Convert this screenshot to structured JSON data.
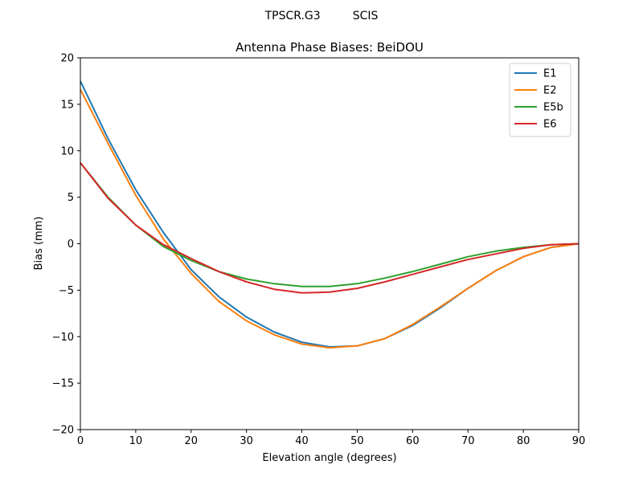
{
  "header": {
    "suptitle": "TPSCR.G3         SCIS"
  },
  "chart_data": {
    "type": "line",
    "title": "Antenna Phase Biases: BeiDOU",
    "xlabel": "Elevation angle (degrees)",
    "ylabel": "Bias (mm)",
    "xlim": [
      0,
      90
    ],
    "ylim": [
      -20,
      20
    ],
    "xticks": [
      0,
      10,
      20,
      30,
      40,
      50,
      60,
      70,
      80,
      90
    ],
    "yticks": [
      -20,
      -15,
      -10,
      -5,
      0,
      5,
      10,
      15,
      20
    ],
    "xtick_labels": [
      "0",
      "10",
      "20",
      "30",
      "40",
      "50",
      "60",
      "70",
      "80",
      "90"
    ],
    "ytick_labels": [
      "−20",
      "−15",
      "−10",
      "−5",
      "0",
      "5",
      "10",
      "15",
      "20"
    ],
    "grid": false,
    "legend_position": "top-right",
    "x": [
      0,
      5,
      10,
      15,
      20,
      25,
      30,
      35,
      40,
      45,
      50,
      55,
      60,
      65,
      70,
      75,
      80,
      85,
      90
    ],
    "series": [
      {
        "name": "E1",
        "color": "#1f77b4",
        "values": [
          17.5,
          11.3,
          5.8,
          1.2,
          -2.8,
          -5.7,
          -7.9,
          -9.5,
          -10.6,
          -11.1,
          -11.0,
          -10.2,
          -8.8,
          -6.9,
          -4.8,
          -2.9,
          -1.4,
          -0.4,
          0.0
        ]
      },
      {
        "name": "E2",
        "color": "#ff7f0e",
        "values": [
          16.6,
          10.8,
          5.2,
          0.5,
          -3.2,
          -6.2,
          -8.3,
          -9.8,
          -10.8,
          -11.2,
          -11.0,
          -10.2,
          -8.7,
          -6.8,
          -4.8,
          -2.9,
          -1.4,
          -0.4,
          0.0
        ]
      },
      {
        "name": "E5b",
        "color": "#2ca02c",
        "values": [
          8.7,
          5.0,
          2.0,
          -0.3,
          -1.8,
          -3.0,
          -3.8,
          -4.3,
          -4.6,
          -4.6,
          -4.3,
          -3.7,
          -3.0,
          -2.2,
          -1.4,
          -0.8,
          -0.4,
          -0.1,
          0.0
        ]
      },
      {
        "name": "E6",
        "color": "#d62728",
        "values": [
          8.7,
          4.9,
          2.0,
          -0.1,
          -1.6,
          -3.0,
          -4.1,
          -4.9,
          -5.3,
          -5.2,
          -4.8,
          -4.1,
          -3.3,
          -2.5,
          -1.7,
          -1.1,
          -0.5,
          -0.1,
          0.0
        ]
      }
    ]
  }
}
